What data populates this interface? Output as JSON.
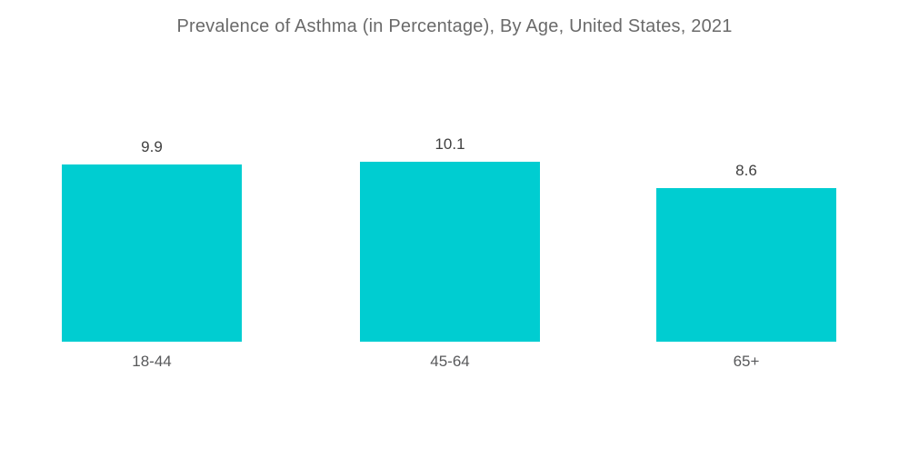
{
  "chart_data": {
    "type": "bar",
    "title": "Prevalence of Asthma (in Percentage), By Age, United States, 2021",
    "categories": [
      "18-44",
      "45-64",
      "65+"
    ],
    "values": [
      9.9,
      10.1,
      8.6
    ],
    "value_labels": [
      "9.9",
      "10.1",
      "8.6"
    ],
    "xlabel": "",
    "ylabel": "",
    "ylim": [
      0,
      10.1
    ],
    "grid": false,
    "legend": "none",
    "axes_visible": false,
    "bar_color": "#00CDD1",
    "background_color": "#FFFFFF",
    "title_color": "#6A6A6A",
    "value_label_color": "#404040",
    "category_label_color": "#58595B"
  }
}
